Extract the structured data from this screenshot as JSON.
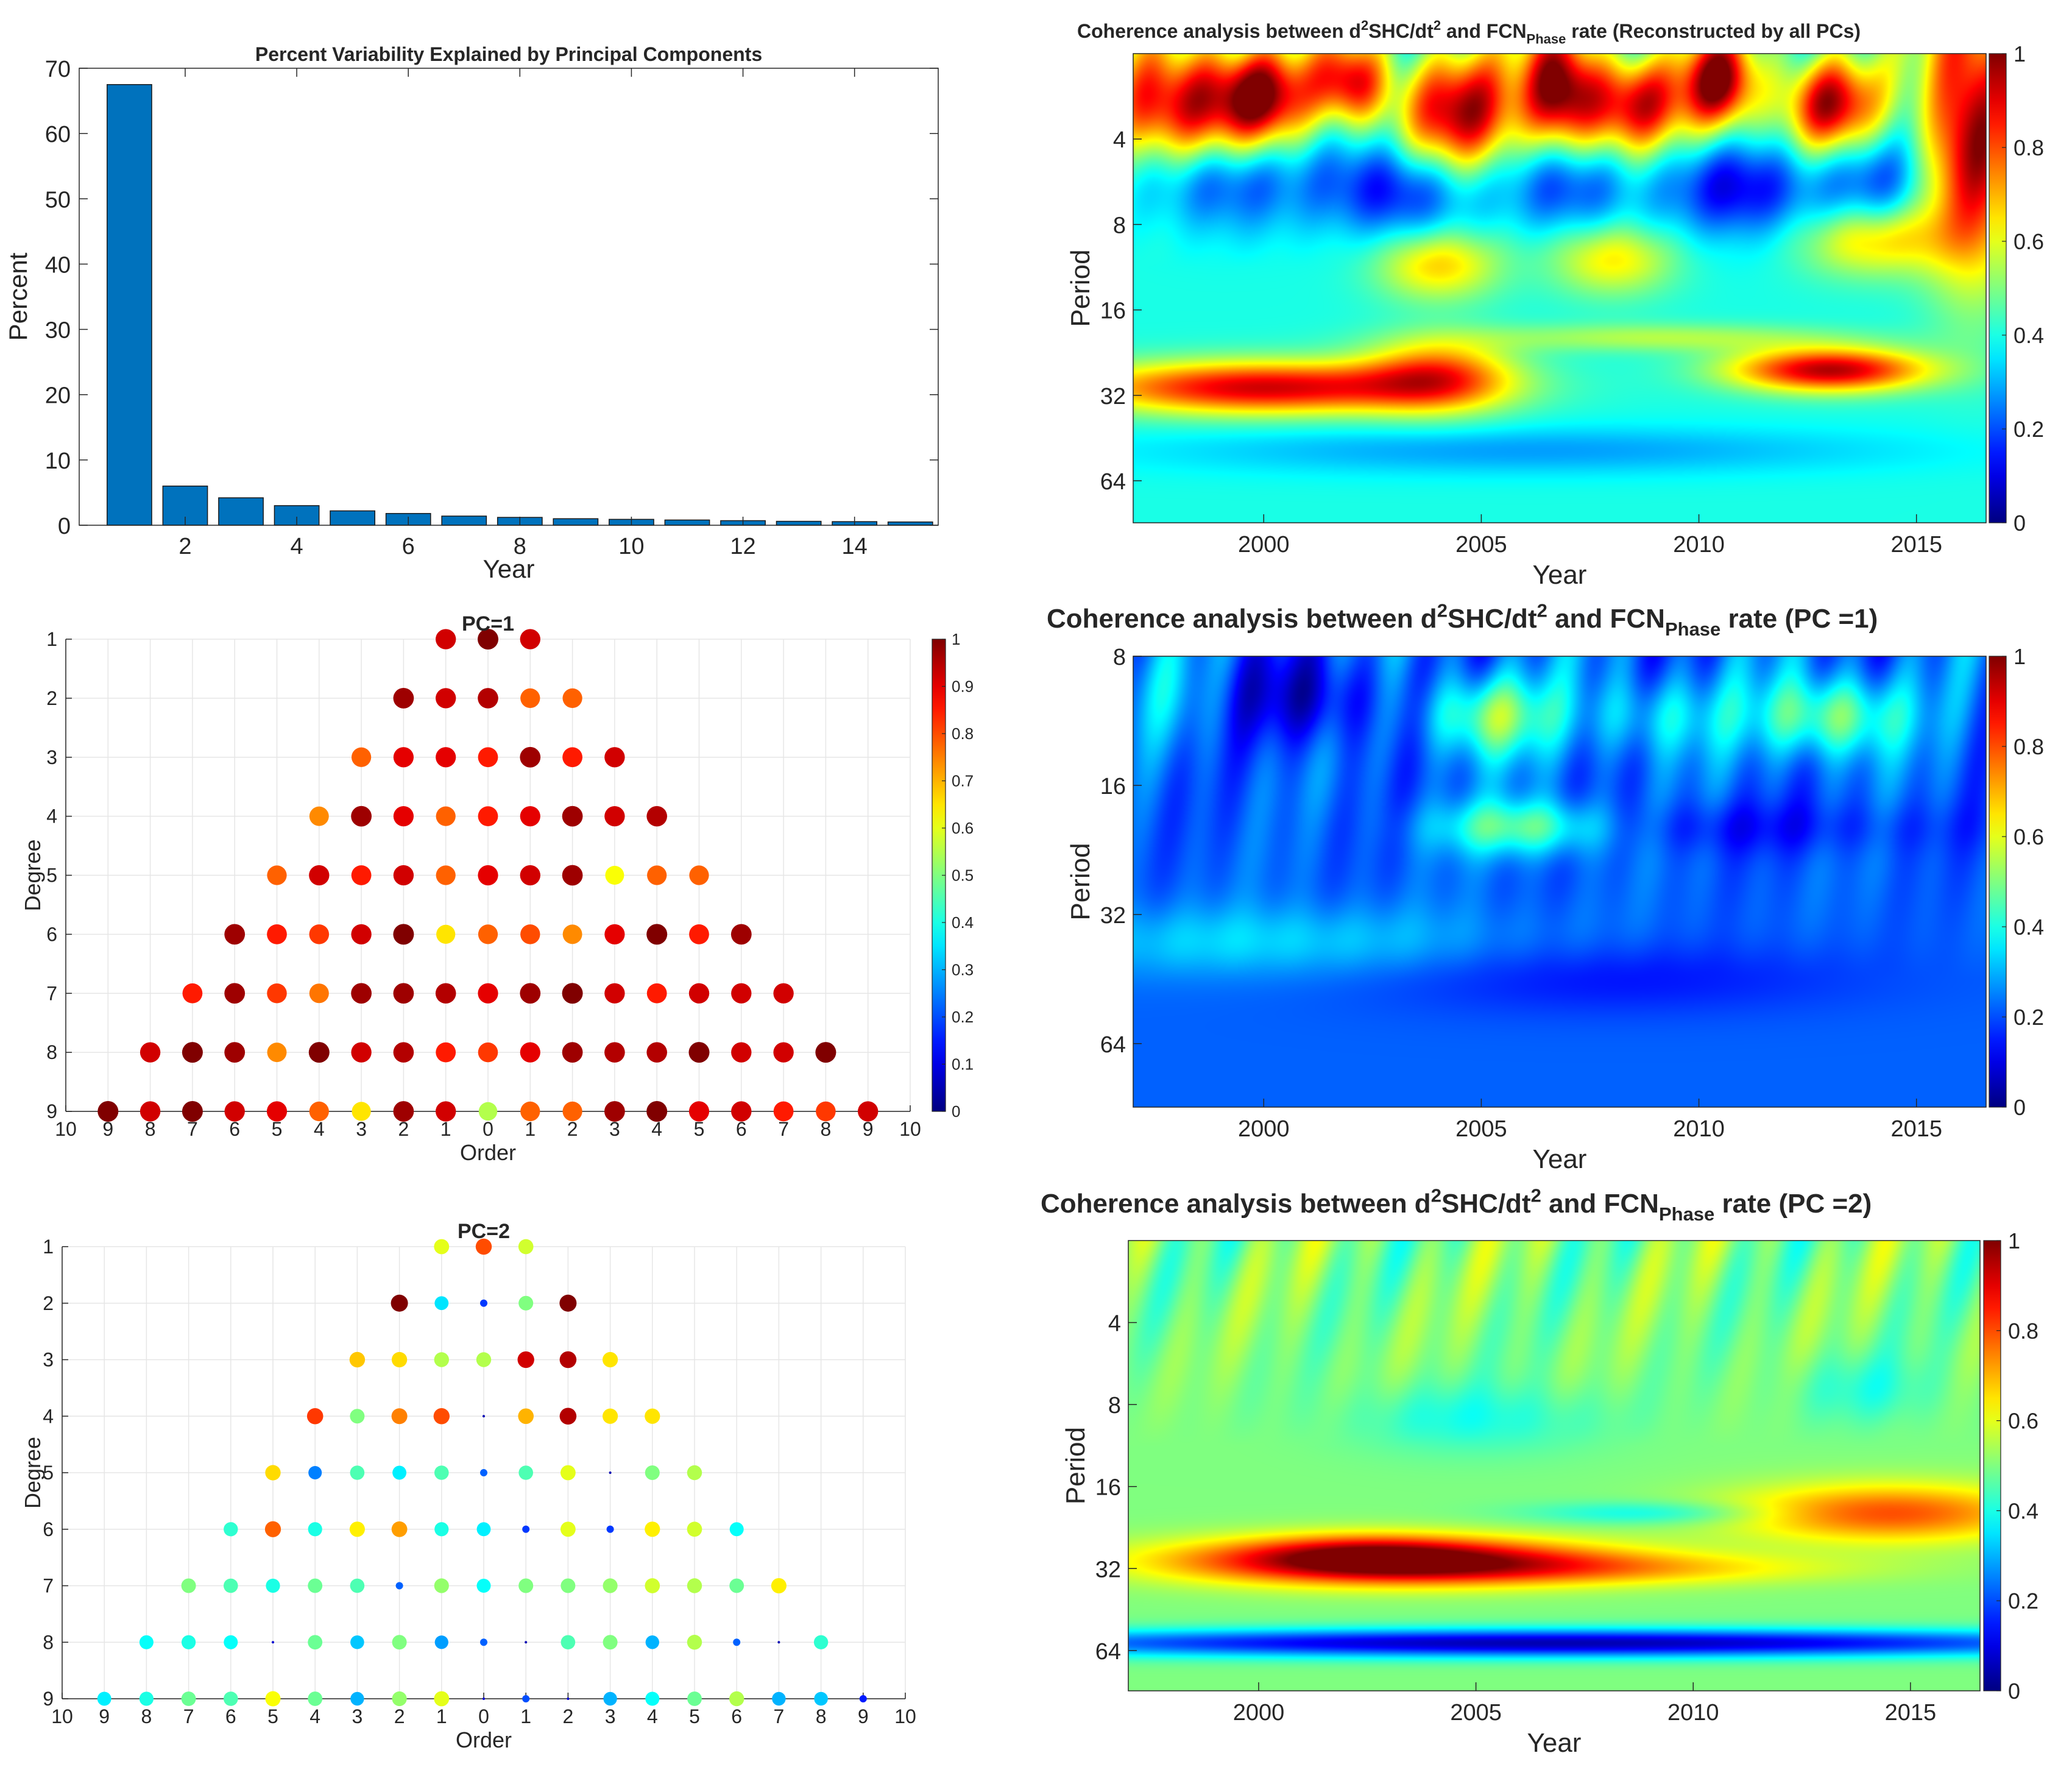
{
  "colorbar": {
    "colormap": "jet",
    "ticks_heat": [
      "0",
      "0.2",
      "0.4",
      "0.6",
      "0.8",
      "1"
    ],
    "ticks_dots": [
      "0",
      "0.1",
      "0.2",
      "0.3",
      "0.4",
      "0.5",
      "0.6",
      "0.7",
      "0.8",
      "0.9",
      "1"
    ]
  },
  "chart_data": [
    {
      "id": "pca_bar",
      "type": "bar",
      "title": "Percent Variability Explained by Principal Components",
      "xlabel": "Year",
      "ylabel": "Percent",
      "bar_color": "#0072bd",
      "categories": [
        1,
        2,
        3,
        4,
        5,
        6,
        7,
        8,
        9,
        10,
        11,
        12,
        13,
        14,
        15
      ],
      "values": [
        67.5,
        6.0,
        4.2,
        3.0,
        2.2,
        1.8,
        1.4,
        1.2,
        1.0,
        0.9,
        0.8,
        0.7,
        0.6,
        0.55,
        0.5
      ],
      "xlim": [
        0.1,
        15.5
      ],
      "ylim": [
        0,
        70
      ],
      "xticks": [
        "2",
        "4",
        "6",
        "8",
        "10",
        "12",
        "14"
      ],
      "yticks": [
        "0",
        "10",
        "20",
        "30",
        "40",
        "50",
        "60",
        "70"
      ]
    },
    {
      "id": "dots_pc1",
      "type": "scatter",
      "title": "PC=1",
      "xlabel": "Order",
      "ylabel": "Degree",
      "xticks": [
        "10",
        "9",
        "8",
        "7",
        "6",
        "5",
        "4",
        "3",
        "2",
        "1",
        "0",
        "1",
        "2",
        "3",
        "4",
        "5",
        "6",
        "7",
        "8",
        "9",
        "10"
      ],
      "yticks": [
        "1",
        "2",
        "3",
        "4",
        "5",
        "6",
        "7",
        "8",
        "9"
      ],
      "values": [
        [
          0.92,
          1.0,
          0.92
        ],
        [
          0.97,
          0.92,
          0.95,
          0.78,
          0.78
        ],
        [
          0.78,
          0.9,
          0.9,
          0.85,
          0.97,
          0.85,
          0.92
        ],
        [
          0.74,
          0.97,
          0.9,
          0.78,
          0.85,
          0.9,
          0.97,
          0.92,
          0.95
        ],
        [
          0.78,
          0.92,
          0.85,
          0.92,
          0.78,
          0.9,
          0.92,
          0.97,
          0.62,
          0.78,
          0.78
        ],
        [
          0.97,
          0.85,
          0.82,
          0.92,
          1.0,
          0.65,
          0.78,
          0.8,
          0.74,
          0.9,
          1.0,
          0.85,
          0.97
        ],
        [
          0.85,
          0.97,
          0.82,
          0.76,
          0.97,
          0.97,
          0.95,
          0.9,
          0.97,
          1.0,
          0.92,
          0.85,
          0.92,
          0.92,
          0.92
        ],
        [
          0.92,
          1.0,
          0.97,
          0.74,
          1.0,
          0.92,
          0.95,
          0.85,
          0.82,
          0.9,
          0.97,
          0.95,
          0.95,
          1.0,
          0.92,
          0.92,
          1.0
        ],
        [
          1.0,
          0.92,
          1.0,
          0.92,
          0.9,
          0.78,
          0.65,
          0.97,
          0.92,
          0.55,
          0.78,
          0.78,
          0.97,
          1.0,
          0.9,
          0.92,
          0.85,
          0.82,
          0.92
        ]
      ]
    },
    {
      "id": "dots_pc2",
      "type": "scatter",
      "title": "PC=2",
      "xlabel": "Order",
      "ylabel": "Degree",
      "xticks": [
        "10",
        "9",
        "8",
        "7",
        "6",
        "5",
        "4",
        "3",
        "2",
        "1",
        "0",
        "1",
        "2",
        "3",
        "4",
        "5",
        "6",
        "7",
        "8",
        "9",
        "10"
      ],
      "yticks": [
        "1",
        "2",
        "3",
        "4",
        "5",
        "6",
        "7",
        "8",
        "9"
      ],
      "values": [
        [
          0.6,
          0.8,
          0.58
        ],
        [
          1.0,
          0.35,
          0.18,
          0.5,
          1.0
        ],
        [
          0.68,
          0.66,
          0.55,
          0.55,
          0.92,
          0.95,
          0.65
        ],
        [
          0.82,
          0.5,
          0.75,
          0.8,
          0.05,
          0.7,
          0.95,
          0.65,
          0.65
        ],
        [
          0.66,
          0.25,
          0.45,
          0.36,
          0.45,
          0.22,
          0.45,
          0.6,
          0.05,
          0.5,
          0.55
        ],
        [
          0.42,
          0.78,
          0.4,
          0.64,
          0.72,
          0.4,
          0.36,
          0.18,
          0.6,
          0.18,
          0.64,
          0.58,
          0.38
        ],
        [
          0.5,
          0.45,
          0.4,
          0.48,
          0.45,
          0.22,
          0.52,
          0.38,
          0.5,
          0.5,
          0.52,
          0.58,
          0.55,
          0.48,
          0.64
        ],
        [
          0.38,
          0.4,
          0.38,
          0.08,
          0.48,
          0.32,
          0.5,
          0.28,
          0.22,
          0.05,
          0.45,
          0.5,
          0.3,
          0.55,
          0.22,
          0.05,
          0.42
        ],
        [
          0.36,
          0.4,
          0.48,
          0.45,
          0.62,
          0.48,
          0.3,
          0.52,
          0.6,
          0.08,
          0.2,
          0.08,
          0.3,
          0.38,
          0.48,
          0.55,
          0.3,
          0.32,
          0.15
        ]
      ]
    },
    {
      "id": "heat_all",
      "type": "heatmap",
      "title_main": "Coherence analysis between d",
      "title_sup": "2",
      "title_mid": "SHC/dt",
      "title_sup2": "2",
      "title_fcn": " and FCN",
      "title_sub": "Phase",
      "title_end": " rate (Reconstructed by all PCs)",
      "xlabel": "Year",
      "ylabel": "Period",
      "xlim": [
        1997,
        2016.6
      ],
      "xticks": [
        "2000",
        "2005",
        "2010",
        "2015"
      ],
      "yticks": [
        "4",
        "8",
        "16",
        "32",
        "64"
      ],
      "ylim": [
        2,
        90
      ],
      "base": 0.4,
      "blobs": [
        [
          1998,
          3.0,
          1.2,
          0.5,
          0.55
        ],
        [
          2000,
          2.8,
          0.8,
          0.4,
          0.5
        ],
        [
          2002,
          2.5,
          0.6,
          0.35,
          0.5
        ],
        [
          2004.5,
          3.2,
          1.0,
          0.5,
          0.55
        ],
        [
          2006.8,
          2.6,
          0.6,
          0.5,
          0.6
        ],
        [
          2008.5,
          3.0,
          0.9,
          0.4,
          0.5
        ],
        [
          2010.5,
          2.5,
          0.6,
          0.4,
          0.6
        ],
        [
          2013,
          3.0,
          0.8,
          0.4,
          0.55
        ],
        [
          2016.3,
          3.5,
          0.8,
          1.2,
          0.6
        ],
        [
          1999,
          5.5,
          1.2,
          0.4,
          -0.25
        ],
        [
          2003,
          6.0,
          1.2,
          0.4,
          -0.3
        ],
        [
          2007,
          5.8,
          1.0,
          0.4,
          -0.25
        ],
        [
          2011,
          6.0,
          1.2,
          0.4,
          -0.3
        ],
        [
          2014,
          5.5,
          0.9,
          0.4,
          -0.2
        ],
        [
          2004,
          11,
          1.0,
          0.3,
          0.28
        ],
        [
          2008,
          10.5,
          1.0,
          0.3,
          0.25
        ],
        [
          2014,
          9,
          1.2,
          0.3,
          0.28
        ],
        [
          2000,
          30,
          3.0,
          0.22,
          0.52
        ],
        [
          2004,
          27,
          1.2,
          0.3,
          0.35
        ],
        [
          2013,
          26,
          1.6,
          0.18,
          0.55
        ],
        [
          2009,
          20,
          3.0,
          0.12,
          0.15
        ],
        [
          2006,
          50,
          6.0,
          0.2,
          -0.12
        ]
      ]
    },
    {
      "id": "heat_pc1",
      "type": "heatmap",
      "title_main": "Coherence analysis between d",
      "title_sup": "2",
      "title_mid": "SHC/dt",
      "title_sup2": "2",
      "title_fcn": " and FCN",
      "title_sub": "Phase",
      "title_end": " rate (PC =1)",
      "xlabel": "Year",
      "ylabel": "Period",
      "xlim": [
        1997,
        2016.6
      ],
      "xticks": [
        "2000",
        "2005",
        "2010",
        "2015"
      ],
      "yticks": [
        "8",
        "16",
        "32",
        "64"
      ],
      "ylim": [
        8,
        90
      ],
      "base": 0.22,
      "blobs": [
        [
          2005.2,
          11,
          1.0,
          0.22,
          0.3
        ],
        [
          2013,
          11,
          1.2,
          0.22,
          0.3
        ],
        [
          2009,
          11,
          1.2,
          0.22,
          0.15
        ],
        [
          2001,
          10,
          1.2,
          0.25,
          -0.15
        ],
        [
          1998,
          10,
          0.8,
          0.3,
          0.08
        ],
        [
          2006,
          20,
          1.5,
          0.15,
          0.3
        ],
        [
          2000,
          37,
          4.0,
          0.2,
          0.12
        ],
        [
          2008,
          45,
          4.0,
          0.2,
          -0.08
        ],
        [
          2010,
          20,
          4.0,
          0.15,
          -0.08
        ]
      ]
    },
    {
      "id": "heat_pc2",
      "type": "heatmap",
      "title_main": "Coherence analysis between d",
      "title_sup": "2",
      "title_mid": "SHC/dt",
      "title_sup2": "2",
      "title_fcn": " and FCN",
      "title_sub": "Phase",
      "title_end": " rate (PC =2)",
      "xlabel": "Year",
      "ylabel": "Period",
      "xlim": [
        1997,
        2016.6
      ],
      "xticks": [
        "2000",
        "2005",
        "2010",
        "2015"
      ],
      "yticks": [
        "4",
        "8",
        "16",
        "32",
        "64"
      ],
      "ylim": [
        2,
        90
      ],
      "base": 0.5,
      "blobs": [
        [
          2003,
          30,
          3.5,
          0.2,
          0.5
        ],
        [
          2002.5,
          28,
          1.8,
          0.16,
          0.15
        ],
        [
          2014.5,
          20,
          2.5,
          0.25,
          0.3
        ],
        [
          2008,
          32,
          4.0,
          0.14,
          0.15
        ],
        [
          2007,
          60,
          10,
          0.12,
          -0.45
        ],
        [
          2009,
          20,
          2.0,
          0.1,
          -0.12
        ],
        [
          2005,
          9,
          2.0,
          0.3,
          -0.1
        ],
        [
          2014,
          7,
          1.2,
          0.3,
          -0.08
        ]
      ]
    }
  ]
}
